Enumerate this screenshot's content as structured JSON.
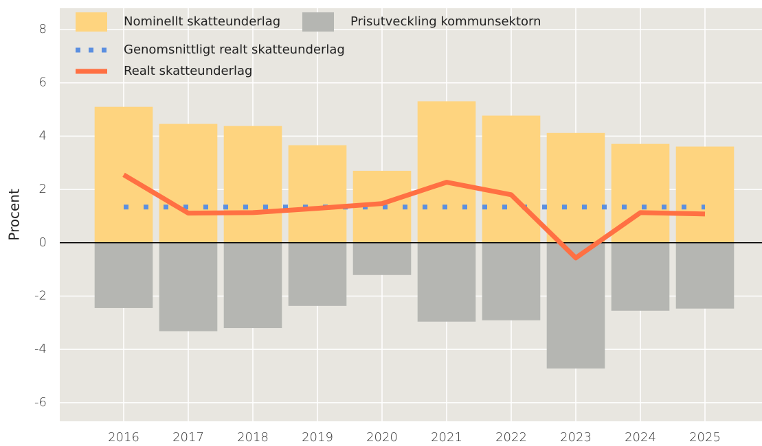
{
  "chart_data": {
    "type": "bar",
    "y_label": "Procent",
    "categories": [
      "2016",
      "2017",
      "2018",
      "2019",
      "2020",
      "2021",
      "2022",
      "2023",
      "2024",
      "2025"
    ],
    "series": [
      {
        "name": "Nominellt skatteunderlag",
        "color": "#fed47f",
        "mark": "bar",
        "values": [
          5.1,
          4.46,
          4.38,
          3.66,
          2.7,
          5.31,
          4.77,
          4.12,
          3.71,
          3.61
        ]
      },
      {
        "name": "Prisutveckling kommunsektorn",
        "color": "#b5b6b2",
        "mark": "bar",
        "values": [
          -2.45,
          -3.32,
          -3.2,
          -2.37,
          -1.21,
          -2.96,
          -2.91,
          -4.72,
          -2.55,
          -2.47
        ]
      },
      {
        "name": "Genomsnittligt realt skatteunderlag",
        "color": "#5b8fe0",
        "mark": "dotted-line",
        "values": [
          1.34,
          1.34,
          1.34,
          1.34,
          1.34,
          1.34,
          1.34,
          1.34,
          1.34,
          1.34
        ]
      },
      {
        "name": "Realt skatteunderlag",
        "color": "#ff7043",
        "mark": "line",
        "values": [
          2.55,
          1.11,
          1.13,
          1.29,
          1.47,
          2.27,
          1.8,
          -0.57,
          1.13,
          1.08
        ]
      }
    ],
    "ylim": [
      -6.7,
      8.8
    ],
    "yticks": [
      -6,
      -4,
      -2,
      0,
      2,
      4,
      6,
      8
    ],
    "grid": true,
    "legend": "top-left"
  }
}
